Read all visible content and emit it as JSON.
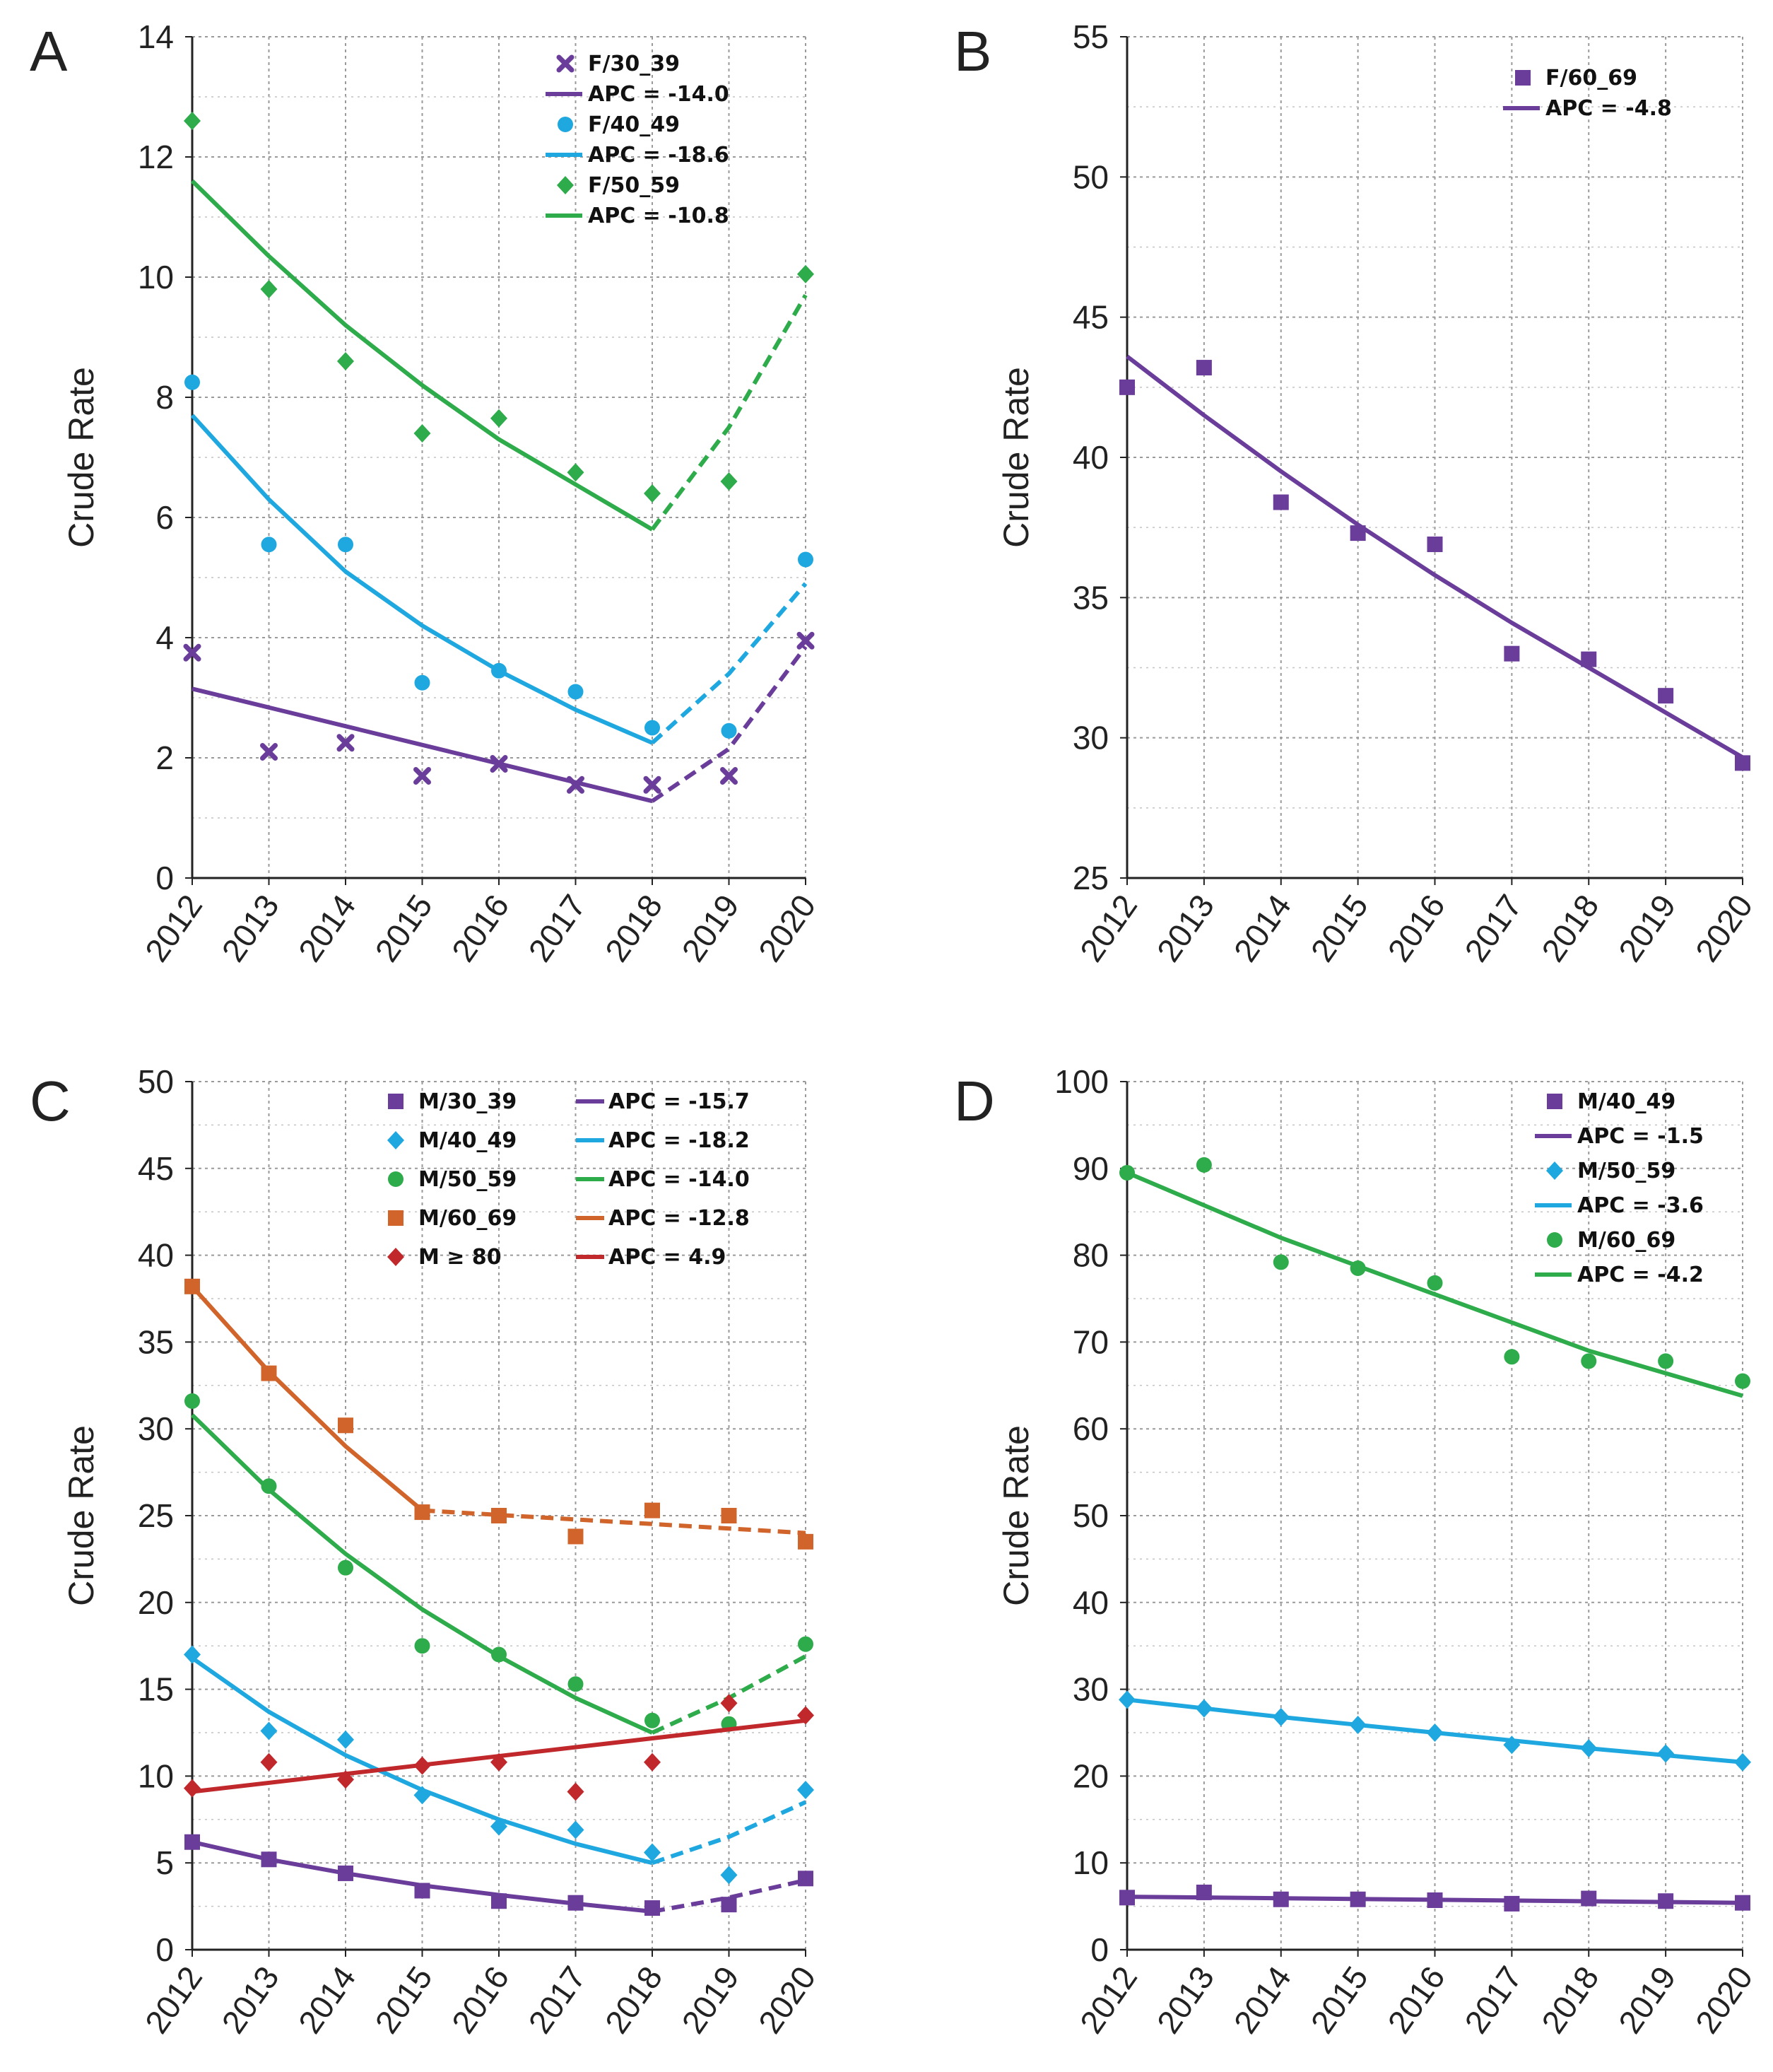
{
  "chart_data": [
    {
      "panel": "A",
      "type": "line",
      "ylabel": "Crude Rate",
      "ylim": [
        0,
        14
      ],
      "yticks": [
        0,
        2,
        4,
        6,
        8,
        10,
        12,
        14
      ],
      "categories": [
        "2012",
        "2013",
        "2014",
        "2015",
        "2016",
        "2017",
        "2018",
        "2019",
        "2020"
      ],
      "series": [
        {
          "name": "F/30_39",
          "apc": "APC = -14.0",
          "color": "#6a3d9a",
          "marker": "x",
          "values": [
            3.75,
            2.1,
            2.25,
            1.7,
            1.9,
            1.55,
            1.55,
            1.7,
            3.95
          ],
          "fit": [
            [
              2012,
              3.15
            ],
            [
              2018,
              1.28
            ]
          ],
          "fit_dashed": [
            [
              2018,
              1.28
            ],
            [
              2019,
              2.15
            ],
            [
              2020,
              3.85
            ]
          ]
        },
        {
          "name": "F/40_49",
          "apc": "APC = -18.6",
          "color": "#1fa8e0",
          "marker": "circle",
          "values": [
            8.25,
            5.55,
            5.55,
            3.25,
            3.45,
            3.1,
            2.5,
            2.45,
            5.3
          ],
          "fit": [
            [
              2012,
              7.7
            ],
            [
              2013,
              6.3
            ],
            [
              2014,
              5.1
            ],
            [
              2015,
              4.2
            ],
            [
              2016,
              3.45
            ],
            [
              2017,
              2.8
            ],
            [
              2018,
              2.25
            ]
          ],
          "fit_dashed": [
            [
              2018,
              2.25
            ],
            [
              2019,
              3.4
            ],
            [
              2020,
              4.9
            ]
          ]
        },
        {
          "name": "F/50_59",
          "apc": "APC = -10.8",
          "color": "#2eab4a",
          "marker": "diamond",
          "values": [
            12.6,
            9.8,
            8.6,
            7.4,
            7.65,
            6.75,
            6.4,
            6.6,
            10.05
          ],
          "fit": [
            [
              2012,
              11.6
            ],
            [
              2013,
              10.35
            ],
            [
              2014,
              9.2
            ],
            [
              2015,
              8.2
            ],
            [
              2016,
              7.3
            ],
            [
              2017,
              6.55
            ],
            [
              2018,
              5.8
            ]
          ],
          "fit_dashed": [
            [
              2018,
              5.8
            ],
            [
              2019,
              7.5
            ],
            [
              2020,
              9.7
            ]
          ]
        }
      ]
    },
    {
      "panel": "B",
      "type": "line",
      "ylabel": "Crude Rate",
      "ylim": [
        25,
        55
      ],
      "yticks": [
        25,
        30,
        35,
        40,
        45,
        50,
        55
      ],
      "categories": [
        "2012",
        "2013",
        "2014",
        "2015",
        "2016",
        "2017",
        "2018",
        "2019",
        "2020"
      ],
      "series": [
        {
          "name": "F/60_69",
          "apc": "APC = -4.8",
          "color": "#6a3d9a",
          "marker": "square",
          "values": [
            42.5,
            43.2,
            38.4,
            37.3,
            36.9,
            33.0,
            32.8,
            31.5,
            29.1
          ],
          "fit": [
            [
              2012,
              43.6
            ],
            [
              2013,
              41.5
            ],
            [
              2014,
              39.5
            ],
            [
              2015,
              37.6
            ],
            [
              2016,
              35.8
            ],
            [
              2017,
              34.1
            ],
            [
              2018,
              32.5
            ],
            [
              2019,
              30.9
            ],
            [
              2020,
              29.3
            ]
          ],
          "fit_dashed": []
        }
      ]
    },
    {
      "panel": "C",
      "type": "line",
      "ylabel": "Crude Rate",
      "ylim": [
        0,
        50
      ],
      "yticks": [
        0,
        5,
        10,
        15,
        20,
        25,
        30,
        35,
        40,
        45,
        50
      ],
      "categories": [
        "2012",
        "2013",
        "2014",
        "2015",
        "2016",
        "2017",
        "2018",
        "2019",
        "2020"
      ],
      "series": [
        {
          "name": "M/30_39",
          "apc": "APC = -15.7",
          "color": "#6a3d9a",
          "marker": "square",
          "values": [
            6.2,
            5.2,
            4.4,
            3.4,
            2.8,
            2.7,
            2.4,
            2.6,
            4.1
          ],
          "fit": [
            [
              2012,
              6.2
            ],
            [
              2013,
              5.2
            ],
            [
              2014,
              4.4
            ],
            [
              2015,
              3.7
            ],
            [
              2016,
              3.15
            ],
            [
              2017,
              2.65
            ],
            [
              2018,
              2.2
            ]
          ],
          "fit_dashed": [
            [
              2018,
              2.2
            ],
            [
              2019,
              3.0
            ],
            [
              2020,
              4.0
            ]
          ]
        },
        {
          "name": "M/40_49",
          "apc": "APC = -18.2",
          "color": "#1fa8e0",
          "marker": "diamond",
          "values": [
            17.0,
            12.6,
            12.1,
            8.9,
            7.1,
            6.9,
            5.6,
            4.3,
            9.2
          ],
          "fit": [
            [
              2012,
              16.8
            ],
            [
              2013,
              13.7
            ],
            [
              2014,
              11.2
            ],
            [
              2015,
              9.2
            ],
            [
              2016,
              7.5
            ],
            [
              2017,
              6.1
            ],
            [
              2018,
              5.0
            ]
          ],
          "fit_dashed": [
            [
              2018,
              5.0
            ],
            [
              2019,
              6.5
            ],
            [
              2020,
              8.5
            ]
          ]
        },
        {
          "name": "M/50_59",
          "apc": "APC = -14.0",
          "color": "#2eab4a",
          "marker": "circle",
          "values": [
            31.6,
            26.7,
            22.0,
            17.5,
            17.0,
            15.3,
            13.2,
            13.0,
            17.6
          ],
          "fit": [
            [
              2012,
              30.8
            ],
            [
              2013,
              26.5
            ],
            [
              2014,
              22.8
            ],
            [
              2015,
              19.6
            ],
            [
              2016,
              16.9
            ],
            [
              2017,
              14.5
            ],
            [
              2018,
              12.5
            ]
          ],
          "fit_dashed": [
            [
              2018,
              12.5
            ],
            [
              2019,
              14.5
            ],
            [
              2020,
              16.9
            ]
          ]
        },
        {
          "name": "M/60_69",
          "apc": "APC = -12.8",
          "color": "#d0642a",
          "marker": "square",
          "values": [
            38.2,
            33.2,
            30.2,
            25.2,
            25.0,
            23.8,
            25.3,
            25.0,
            23.5
          ],
          "fit": [
            [
              2012,
              38.2
            ],
            [
              2013,
              33.3
            ],
            [
              2014,
              29.0
            ],
            [
              2015,
              25.3
            ]
          ],
          "fit_dashed": [
            [
              2015,
              25.3
            ],
            [
              2020,
              24.0
            ]
          ]
        },
        {
          "name": "M ≥ 80",
          "apc": "APC = 4.9",
          "color": "#c0282c",
          "marker": "diamond",
          "values": [
            9.3,
            10.8,
            9.8,
            10.6,
            10.8,
            9.1,
            10.8,
            14.2,
            13.5
          ],
          "fit": [
            [
              2012,
              9.1
            ],
            [
              2020,
              13.2
            ]
          ],
          "fit_dashed": []
        }
      ]
    },
    {
      "panel": "D",
      "type": "line",
      "ylabel": "Crude Rate",
      "ylim": [
        0,
        100
      ],
      "yticks": [
        0,
        10,
        20,
        30,
        40,
        50,
        60,
        70,
        80,
        90,
        100
      ],
      "categories": [
        "2012",
        "2013",
        "2014",
        "2015",
        "2016",
        "2017",
        "2018",
        "2019",
        "2020"
      ],
      "series": [
        {
          "name": "M/40_49",
          "apc": "APC = -1.5",
          "color": "#6a3d9a",
          "marker": "square",
          "values": [
            6.0,
            6.6,
            5.8,
            5.8,
            5.7,
            5.3,
            5.9,
            5.6,
            5.4
          ],
          "fit": [
            [
              2012,
              6.1
            ],
            [
              2020,
              5.4
            ]
          ],
          "fit_dashed": []
        },
        {
          "name": "M/50_59",
          "apc": "APC = -3.6",
          "color": "#1fa8e0",
          "marker": "diamond",
          "values": [
            28.8,
            27.8,
            26.8,
            25.9,
            25.0,
            23.6,
            23.2,
            22.6,
            21.6
          ],
          "fit": [
            [
              2012,
              28.8
            ],
            [
              2014,
              26.8
            ],
            [
              2016,
              25.0
            ],
            [
              2018,
              23.2
            ],
            [
              2020,
              21.6
            ]
          ],
          "fit_dashed": []
        },
        {
          "name": "M/60_69",
          "apc": "APC = -4.2",
          "color": "#2eab4a",
          "marker": "circle",
          "values": [
            89.5,
            90.4,
            79.2,
            78.5,
            76.8,
            68.3,
            67.8,
            67.8,
            65.5
          ],
          "fit": [
            [
              2012,
              89.5
            ],
            [
              2014,
              82.0
            ],
            [
              2016,
              75.5
            ],
            [
              2018,
              69.0
            ],
            [
              2020,
              63.8
            ]
          ],
          "fit_dashed": []
        }
      ]
    }
  ]
}
